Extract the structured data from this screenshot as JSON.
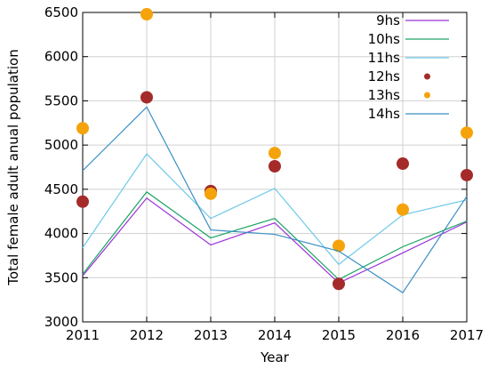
{
  "chart_data": {
    "type": "line",
    "xlabel": "Year",
    "ylabel": "Total female adult anual population",
    "xlim": [
      2011,
      2017
    ],
    "ylim": [
      3000,
      6500
    ],
    "xticks": [
      "2011",
      "2012",
      "2013",
      "2014",
      "2015",
      "2016",
      "2017"
    ],
    "yticks": [
      "3000",
      "3500",
      "4000",
      "4500",
      "5000",
      "5500",
      "6000",
      "6500"
    ],
    "grid": true,
    "legend_position": "top-right",
    "x": [
      2011,
      2012,
      2013,
      2014,
      2015,
      2016,
      2017
    ],
    "series": [
      {
        "name": "9hs",
        "style": "line",
        "color": "#9b30d8",
        "values": [
          3520,
          4400,
          3870,
          4120,
          3440,
          3780,
          4130
        ]
      },
      {
        "name": "10hs",
        "style": "line",
        "color": "#1aa366",
        "values": [
          3540,
          4470,
          3950,
          4170,
          3480,
          3850,
          4140
        ]
      },
      {
        "name": "11hs",
        "style": "line",
        "color": "#6ec9e8",
        "values": [
          3840,
          4900,
          4170,
          4510,
          3650,
          4210,
          4380
        ]
      },
      {
        "name": "12hs",
        "style": "point",
        "color": "#a52a2a",
        "values": [
          4360,
          5540,
          4480,
          4760,
          3430,
          4790,
          4660
        ]
      },
      {
        "name": "13hs",
        "style": "point",
        "color": "#f5a30a",
        "values": [
          5190,
          6480,
          4450,
          4910,
          3860,
          4270,
          5140
        ]
      },
      {
        "name": "14hs",
        "style": "line",
        "color": "#3a8fc4",
        "values": [
          4710,
          5430,
          4040,
          3990,
          3800,
          3330,
          4420
        ]
      }
    ]
  }
}
